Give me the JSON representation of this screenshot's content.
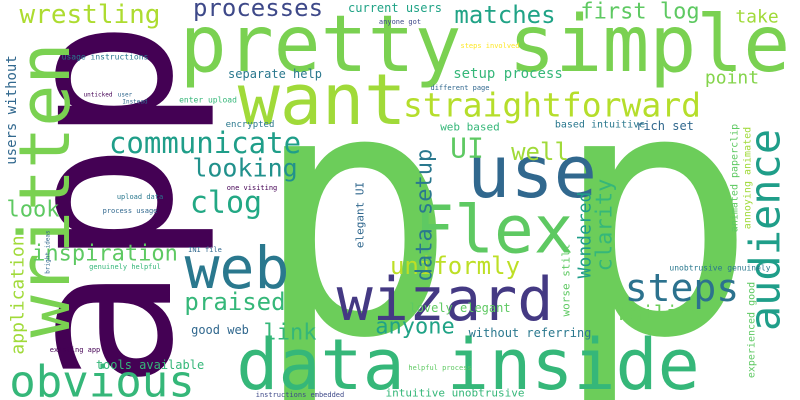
{
  "words": [
    "app",
    "p",
    "p",
    "pretty simple",
    "written",
    "want",
    "straightforward",
    "use",
    "data inside",
    "wizard",
    "web",
    "Flex",
    "obvious",
    "audience",
    "steps",
    "communicate",
    "looking",
    "clog",
    "processes",
    "wrestling",
    "matches",
    "first log",
    "take",
    "UI",
    "well",
    "setup process",
    "point",
    "separate help",
    "current users",
    "users without",
    "look",
    "inspiration",
    "uniformly",
    "praised",
    "data setup",
    "clarity",
    "Wondered",
    "link",
    "anyone",
    "Failing",
    "application",
    "lovely elegant",
    "good web",
    "tools available",
    "without referring",
    "intuitive unobtrusive",
    "web based",
    "based intuitive",
    "rich set",
    "elegant UI",
    "worse still",
    "annoying animated",
    "animated paperclip",
    "unobtrusive genuinely",
    "experienced good",
    "encrypted",
    "enter upload",
    "usage instructions",
    "upload data",
    "process usage",
    "one visiting",
    "INI file",
    "genuinely helpful",
    "bright ideas",
    "existing app",
    "instructions embedded",
    "helpful process",
    "different page",
    "anyone got",
    "steps involved",
    "user",
    "Instead",
    "unticked"
  ]
}
